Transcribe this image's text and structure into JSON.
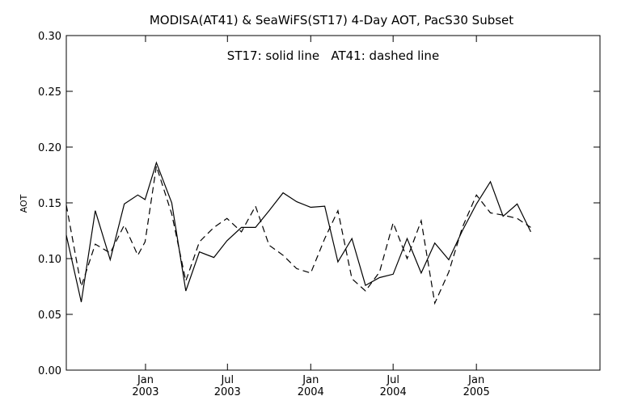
{
  "chart_data": {
    "type": "line",
    "title": "MODISA(AT41) & SeaWiFS(ST17) 4-Day AOT, PacS30 Subset",
    "ylabel": "AOT",
    "xlabel": "",
    "ylim": [
      0.0,
      0.3
    ],
    "xlim": [
      "2002-07-10",
      "2005-10-01"
    ],
    "grid": false,
    "annotation": "ST17: solid line   AT41: dashed line",
    "y_ticks": [
      "0.00",
      "0.05",
      "0.10",
      "0.15",
      "0.20",
      "0.25",
      "0.30"
    ],
    "x_ticks": [
      {
        "date": "2003-01-01",
        "month": "Jan",
        "year": "2003"
      },
      {
        "date": "2003-07-01",
        "month": "Jul",
        "year": "2003"
      },
      {
        "date": "2004-01-01",
        "month": "Jan",
        "year": "2004"
      },
      {
        "date": "2004-07-01",
        "month": "Jul",
        "year": "2004"
      },
      {
        "date": "2005-01-01",
        "month": "Jan",
        "year": "2005"
      }
    ],
    "series": [
      {
        "name": "ST17",
        "style": "solid",
        "points": [
          [
            "2002-07-10",
            0.121
          ],
          [
            "2002-08-12",
            0.061
          ],
          [
            "2002-09-12",
            0.143
          ],
          [
            "2002-10-15",
            0.099
          ],
          [
            "2002-11-15",
            0.149
          ],
          [
            "2002-12-15",
            0.157
          ],
          [
            "2002-12-31",
            0.153
          ],
          [
            "2003-01-25",
            0.186
          ],
          [
            "2003-02-28",
            0.15
          ],
          [
            "2003-03-31",
            0.071
          ],
          [
            "2003-04-30",
            0.106
          ],
          [
            "2003-06-01",
            0.101
          ],
          [
            "2003-06-30",
            0.116
          ],
          [
            "2003-08-01",
            0.128
          ],
          [
            "2003-09-01",
            0.128
          ],
          [
            "2003-10-01",
            0.143
          ],
          [
            "2003-11-01",
            0.159
          ],
          [
            "2003-12-01",
            0.151
          ],
          [
            "2004-01-01",
            0.146
          ],
          [
            "2004-02-01",
            0.147
          ],
          [
            "2004-03-01",
            0.097
          ],
          [
            "2004-04-01",
            0.118
          ],
          [
            "2004-05-01",
            0.076
          ],
          [
            "2004-06-01",
            0.083
          ],
          [
            "2004-07-01",
            0.086
          ],
          [
            "2004-08-01",
            0.118
          ],
          [
            "2004-09-01",
            0.087
          ],
          [
            "2004-10-01",
            0.114
          ],
          [
            "2004-11-01",
            0.099
          ],
          [
            "2004-12-01",
            0.125
          ],
          [
            "2005-01-01",
            0.149
          ],
          [
            "2005-02-01",
            0.169
          ],
          [
            "2005-03-01",
            0.138
          ],
          [
            "2005-04-01",
            0.149
          ],
          [
            "2005-05-01",
            0.124
          ]
        ]
      },
      {
        "name": "AT41",
        "style": "dashed",
        "points": [
          [
            "2002-07-10",
            0.148
          ],
          [
            "2002-08-12",
            0.075
          ],
          [
            "2002-09-12",
            0.113
          ],
          [
            "2002-10-15",
            0.105
          ],
          [
            "2002-11-15",
            0.13
          ],
          [
            "2002-12-15",
            0.103
          ],
          [
            "2002-12-31",
            0.115
          ],
          [
            "2003-01-25",
            0.183
          ],
          [
            "2003-02-28",
            0.14
          ],
          [
            "2003-03-31",
            0.08
          ],
          [
            "2003-04-30",
            0.115
          ],
          [
            "2003-06-01",
            0.128
          ],
          [
            "2003-06-30",
            0.136
          ],
          [
            "2003-08-01",
            0.124
          ],
          [
            "2003-09-01",
            0.147
          ],
          [
            "2003-10-01",
            0.112
          ],
          [
            "2003-11-01",
            0.103
          ],
          [
            "2003-12-01",
            0.091
          ],
          [
            "2004-01-01",
            0.087
          ],
          [
            "2004-02-01",
            0.118
          ],
          [
            "2004-03-01",
            0.143
          ],
          [
            "2004-04-01",
            0.082
          ],
          [
            "2004-05-01",
            0.071
          ],
          [
            "2004-06-01",
            0.088
          ],
          [
            "2004-07-01",
            0.132
          ],
          [
            "2004-08-01",
            0.1
          ],
          [
            "2004-09-01",
            0.134
          ],
          [
            "2004-10-01",
            0.06
          ],
          [
            "2004-11-01",
            0.088
          ],
          [
            "2004-12-01",
            0.128
          ],
          [
            "2005-01-01",
            0.157
          ],
          [
            "2005-02-01",
            0.141
          ],
          [
            "2005-03-01",
            0.139
          ],
          [
            "2005-04-01",
            0.136
          ],
          [
            "2005-05-01",
            0.128
          ]
        ]
      }
    ]
  }
}
